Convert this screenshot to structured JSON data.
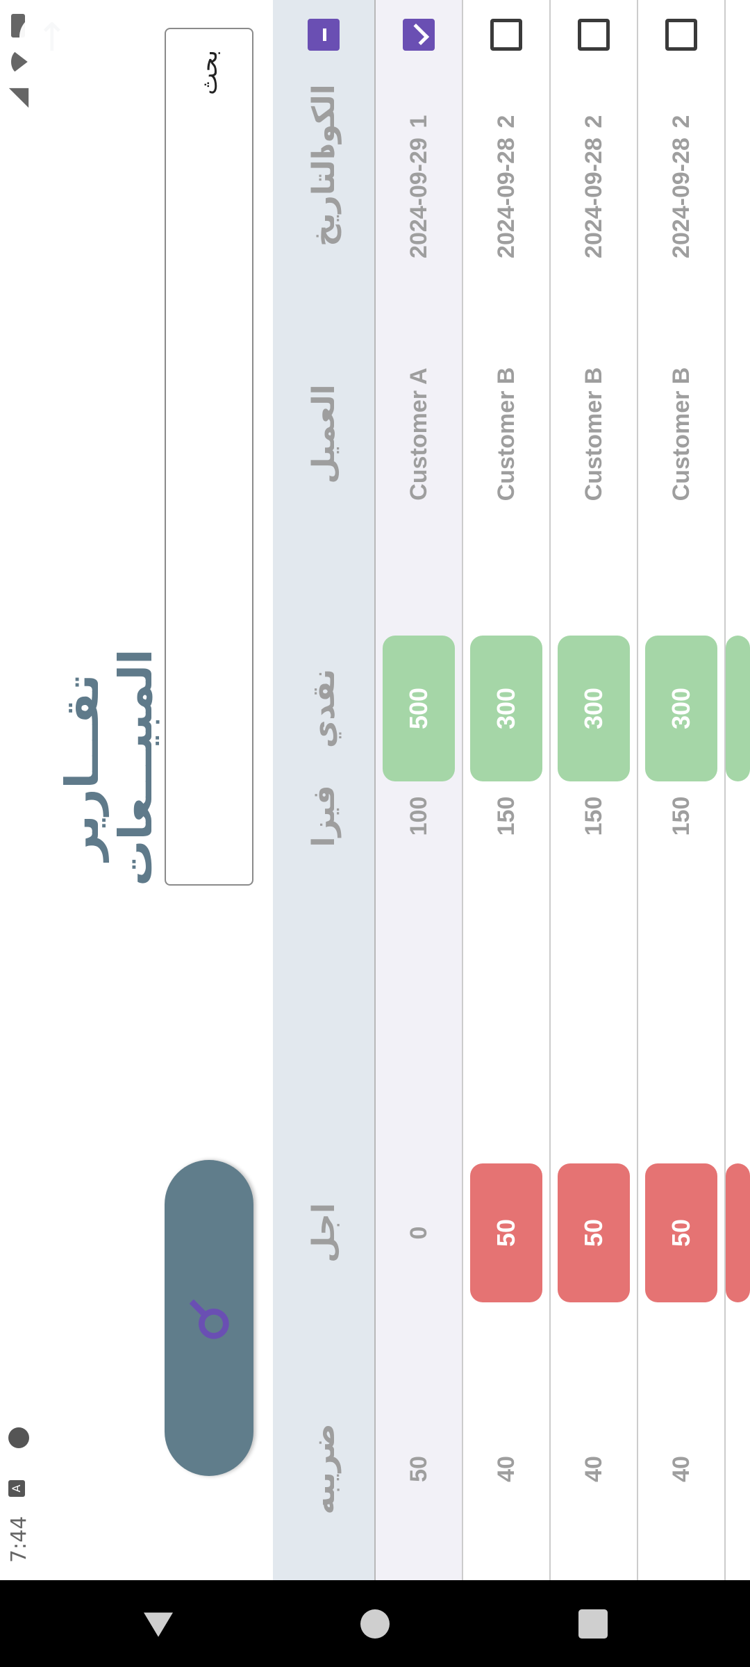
{
  "status_bar": {
    "time": "7:44",
    "left_icons": [
      "a-icon",
      "face-icon"
    ],
    "right_icons": [
      "signal-off-icon",
      "wifi-icon",
      "battery-icon"
    ]
  },
  "header": {
    "title": "تقـــارير المبيـــعات",
    "back_icon": "arrow-back-icon"
  },
  "search": {
    "placeholder": "بحث",
    "button_icon": "search-icon"
  },
  "table": {
    "columns": [
      "ضريبه",
      "اجل",
      "فيزا",
      "نقدي",
      "العميل",
      "التاريخ",
      "الكود"
    ],
    "rows": [
      {
        "tax": "50",
        "later": "0",
        "visa": "100",
        "cash": "500",
        "customer": "Customer A",
        "date": "2024-09-29",
        "code": "1",
        "checked": true
      },
      {
        "tax": "40",
        "later": "50",
        "visa": "150",
        "cash": "300",
        "customer": "Customer B",
        "date": "2024-09-28",
        "code": "2",
        "checked": false
      },
      {
        "tax": "40",
        "later": "50",
        "visa": "150",
        "cash": "300",
        "customer": "Customer B",
        "date": "2024-09-28",
        "code": "2",
        "checked": false
      },
      {
        "tax": "40",
        "later": "50",
        "visa": "150",
        "cash": "300",
        "customer": "Customer B",
        "date": "2024-09-28",
        "code": "2",
        "checked": false
      }
    ]
  },
  "colors": {
    "accent": "#607d8b",
    "checkbox": "#6a4fb3",
    "cash_pill": "#a5d6a7",
    "later_pill": "#e57373",
    "header_bg": "#e2e8ee",
    "selected_row_bg": "#f2f1f7"
  },
  "nav_bar": {
    "icons": [
      "nav-back-icon",
      "nav-home-icon",
      "nav-recent-icon"
    ]
  }
}
